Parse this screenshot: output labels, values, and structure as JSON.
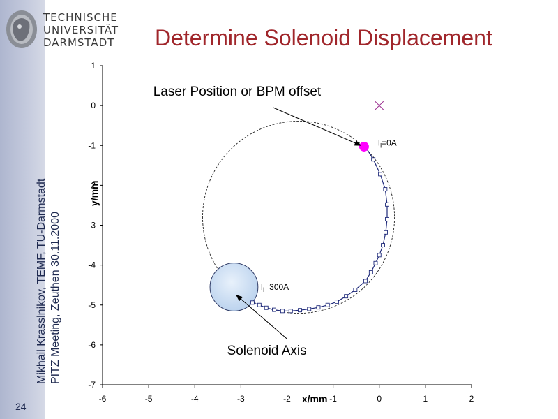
{
  "header": {
    "logo_lines": [
      "TECHNISCHE",
      "UNIVERSITÄT",
      "DARMSTADT"
    ],
    "title": "Determine Solenoid Displacement"
  },
  "sidebar": {
    "line1": "Mikhail Krasslnikov, TEMF, TU-Darmstadt",
    "line2": "PITZ Meeting, Zeuthen 30.11.2000",
    "slide_number": "24"
  },
  "chart_data": {
    "type": "scatter",
    "xlabel": "x/mm",
    "ylabel": "y/mm",
    "xlim": [
      -6,
      2
    ],
    "ylim": [
      -7,
      1
    ],
    "x_ticks": [
      "-6",
      "-5",
      "-4",
      "-3",
      "-2",
      "-1",
      "0",
      "1",
      "2"
    ],
    "y_ticks": [
      "1",
      "0",
      "-1",
      "-2",
      "-3",
      "-4",
      "-5",
      "-6",
      "-7"
    ],
    "x_tick_values": [
      -6,
      -5,
      -4,
      -3,
      -2,
      -1,
      0,
      1,
      2
    ],
    "y_tick_values": [
      1,
      0,
      -1,
      -2,
      -3,
      -4,
      -5,
      -6,
      -7
    ],
    "grid": false,
    "trajectory": {
      "x": [
        -0.3,
        -0.13,
        0.02,
        0.13,
        0.17,
        0.17,
        0.14,
        0.08,
        0.0,
        -0.08,
        -0.18,
        -0.3,
        -0.52,
        -0.72,
        -0.92,
        -1.12,
        -1.32,
        -1.52,
        -1.72,
        -1.92,
        -2.1,
        -2.28,
        -2.45,
        -2.6,
        -2.75
      ],
      "y": [
        -1.03,
        -1.35,
        -1.72,
        -2.1,
        -2.48,
        -2.85,
        -3.18,
        -3.5,
        -3.75,
        -3.95,
        -4.18,
        -4.4,
        -4.62,
        -4.78,
        -4.92,
        -5.0,
        -5.06,
        -5.1,
        -5.13,
        -5.15,
        -5.15,
        -5.12,
        -5.07,
        -5.0,
        -4.94
      ]
    },
    "dashed_circle": {
      "center_x": -1.75,
      "center_y": -2.8,
      "radius": 2.08
    },
    "laser_point": {
      "x": -0.33,
      "y": -1.03,
      "color": "#ff00ff"
    },
    "cross_marker": {
      "x": 0.0,
      "y": 0.0,
      "color": "#9b2f8f"
    },
    "solenoid_axis": {
      "x": -3.15,
      "y": -4.55,
      "radius": 0.52,
      "color": "#cfe0f4"
    },
    "annotations": [
      {
        "id": "laser",
        "text": "Laser Position or BPM offset",
        "x": -4.9,
        "y": 0.25,
        "arrow_from": [
          -2.3,
          -0.05
        ],
        "arrow_to": [
          -0.4,
          -1.0
        ]
      },
      {
        "id": "solenoid",
        "text": "Solenoid Axis",
        "x": -3.3,
        "y": -6.25,
        "arrow_from": [
          -2.0,
          -5.85
        ],
        "arrow_to": [
          -3.1,
          -4.75
        ]
      }
    ],
    "point_labels": [
      {
        "id": "i0",
        "main": "I",
        "sub": "l",
        "rest": "=0A",
        "x": -0.03,
        "y": -1.0
      },
      {
        "id": "i300",
        "main": "I",
        "sub": "l",
        "rest": "=300A",
        "x": -2.57,
        "y": -4.62
      }
    ]
  }
}
